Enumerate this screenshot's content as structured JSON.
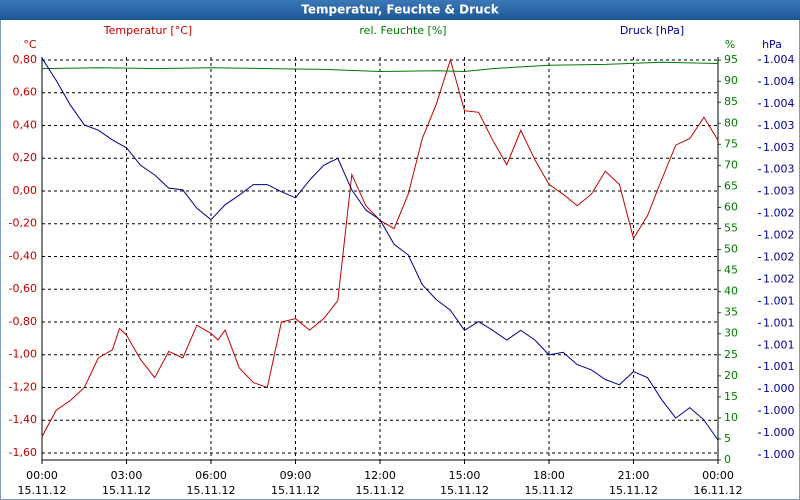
{
  "chart_data": {
    "type": "line",
    "title": "Temperatur, Feuchte & Druck",
    "y_unit": "°C",
    "y2_unit": "%",
    "y3_unit": "hPa",
    "xlim": [
      0,
      24
    ],
    "xticks": [
      {
        "value": 0,
        "label": "00:00",
        "date": "15.11.12"
      },
      {
        "value": 3,
        "label": "03:00",
        "date": "15.11.12"
      },
      {
        "value": 6,
        "label": "06:00",
        "date": "15.11.12"
      },
      {
        "value": 9,
        "label": "09:00",
        "date": "15.11.12"
      },
      {
        "value": 12,
        "label": "12:00",
        "date": "15.11.12"
      },
      {
        "value": 15,
        "label": "15:00",
        "date": "15.11.12"
      },
      {
        "value": 18,
        "label": "18:00",
        "date": "15.11.12"
      },
      {
        "value": 21,
        "label": "21:00",
        "date": "15.11.12"
      },
      {
        "value": 24,
        "label": "00:00",
        "date": "16.11.12"
      }
    ],
    "ylim": [
      -1.643,
      0.818
    ],
    "yticks": [
      {
        "value": 0.8,
        "label": "0,80"
      },
      {
        "value": 0.6,
        "label": "0,60"
      },
      {
        "value": 0.4,
        "label": "0,40"
      },
      {
        "value": 0.2,
        "label": "0,20"
      },
      {
        "value": 0,
        "label": "0,00"
      },
      {
        "value": -0.2,
        "label": "-0,20"
      },
      {
        "value": -0.4,
        "label": "-0,40"
      },
      {
        "value": -0.6,
        "label": "-0,60"
      },
      {
        "value": -0.8,
        "label": "-0,80"
      },
      {
        "value": -1.0,
        "label": "-1,00"
      },
      {
        "value": -1.2,
        "label": "-1,20"
      },
      {
        "value": -1.4,
        "label": "-1,40"
      },
      {
        "value": -1.6,
        "label": "-1,60"
      }
    ],
    "y2lim": [
      0,
      95.75
    ],
    "y2ticks": [
      0,
      5,
      10,
      15,
      20,
      25,
      30,
      35,
      40,
      45,
      50,
      55,
      60,
      65,
      70,
      75,
      80,
      85,
      90,
      95
    ],
    "y3lim": [
      999.543,
      1004.134
    ],
    "y3ticks": [
      {
        "value": 999.6,
        "label": "1.000"
      },
      {
        "value": 999.85,
        "label": "1.000"
      },
      {
        "value": 1000.1,
        "label": "1.000"
      },
      {
        "value": 1000.35,
        "label": "1.000"
      },
      {
        "value": 1000.6,
        "label": "1.001"
      },
      {
        "value": 1000.85,
        "label": "1.001"
      },
      {
        "value": 1001.1,
        "label": "1.001"
      },
      {
        "value": 1001.35,
        "label": "1.001"
      },
      {
        "value": 1001.6,
        "label": "1.002"
      },
      {
        "value": 1001.85,
        "label": "1.002"
      },
      {
        "value": 1002.1,
        "label": "1.002"
      },
      {
        "value": 1002.35,
        "label": "1.002"
      },
      {
        "value": 1002.6,
        "label": "1.003"
      },
      {
        "value": 1002.85,
        "label": "1.003"
      },
      {
        "value": 1003.1,
        "label": "1.003"
      },
      {
        "value": 1003.35,
        "label": "1.003"
      },
      {
        "value": 1003.6,
        "label": "1.004"
      },
      {
        "value": 1003.85,
        "label": "1.004"
      },
      {
        "value": 1004.1,
        "label": "1.004"
      }
    ],
    "grid": true,
    "series": [
      {
        "name": "Temperatur [°C]",
        "color": "#c00000",
        "axis": "y",
        "x": [
          0,
          0.5,
          1,
          1.5,
          2,
          2.5,
          2.75,
          3,
          3.5,
          4,
          4.5,
          5,
          5.5,
          6,
          6.25,
          6.5,
          7,
          7.5,
          8,
          8.5,
          9,
          9.5,
          10,
          10.5,
          11,
          11.5,
          12,
          12.5,
          13,
          13.5,
          14,
          14.5,
          15,
          15.5,
          16,
          16.5,
          17,
          17.5,
          18,
          18.5,
          19,
          19.5,
          20,
          20.5,
          21,
          21.5,
          22,
          22.5,
          23,
          23.5,
          24
        ],
        "values": [
          -1.5,
          -1.34,
          -1.28,
          -1.2,
          -1.02,
          -0.97,
          -0.84,
          -0.88,
          -1.03,
          -1.14,
          -0.98,
          -1.02,
          -0.82,
          -0.87,
          -0.91,
          -0.85,
          -1.08,
          -1.17,
          -1.2,
          -0.8,
          -0.78,
          -0.85,
          -0.78,
          -0.67,
          0.1,
          -0.09,
          -0.18,
          -0.23,
          -0.02,
          0.32,
          0.53,
          0.8,
          0.49,
          0.48,
          0.31,
          0.16,
          0.37,
          0.19,
          0.04,
          -0.02,
          -0.09,
          -0.02,
          0.12,
          0.04,
          -0.29,
          -0.15,
          0.07,
          0.28,
          0.32,
          0.45,
          0.31
        ]
      },
      {
        "name": "rel. Feuchte [%]",
        "color": "#007a00",
        "axis": "y2",
        "x": [
          0,
          2,
          4,
          6,
          8,
          10,
          12,
          14,
          15,
          16,
          18,
          20,
          22,
          24
        ],
        "values": [
          93,
          93.2,
          93,
          93.2,
          93,
          92.8,
          92.3,
          92.5,
          92.3,
          93,
          93.8,
          94,
          94.5,
          94.2
        ]
      },
      {
        "name": "Druck [hPa]",
        "color": "#00008b",
        "axis": "y3",
        "x": [
          0,
          0.5,
          1,
          1.5,
          2,
          2.5,
          3,
          3.5,
          4,
          4.5,
          5,
          5.5,
          6,
          6.5,
          7,
          7.5,
          8,
          8.5,
          9,
          9.5,
          10,
          10.5,
          11,
          11.5,
          12,
          12.5,
          13,
          13.5,
          14,
          14.5,
          15,
          15.5,
          16,
          16.5,
          17,
          17.5,
          18,
          18.5,
          19,
          19.5,
          20,
          20.5,
          21,
          21.5,
          22,
          22.5,
          23,
          23.5,
          24
        ],
        "values": [
          1004.12,
          1003.87,
          1003.59,
          1003.36,
          1003.3,
          1003.19,
          1003.1,
          1002.9,
          1002.79,
          1002.64,
          1002.62,
          1002.41,
          1002.28,
          1002.45,
          1002.56,
          1002.68,
          1002.68,
          1002.6,
          1002.53,
          1002.73,
          1002.9,
          1002.98,
          1002.62,
          1002.39,
          1002.28,
          1002.0,
          1001.88,
          1001.54,
          1001.37,
          1001.25,
          1001.02,
          1001.12,
          1001.02,
          1000.91,
          1001.02,
          1000.91,
          1000.74,
          1000.77,
          1000.63,
          1000.57,
          1000.46,
          1000.4,
          1000.55,
          1000.48,
          1000.23,
          1000.02,
          1000.14,
          1000.0,
          999.77
        ]
      }
    ]
  }
}
